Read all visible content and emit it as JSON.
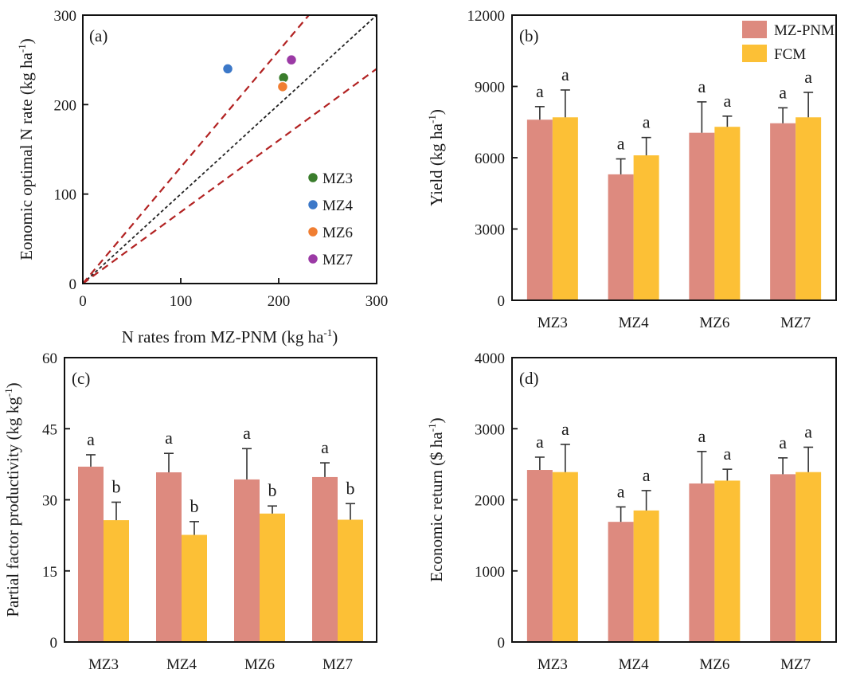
{
  "colors": {
    "mzpnm": "#dd8a7f",
    "fcm": "#fcc036",
    "red_line": "#b22222",
    "black_line": "#222222"
  },
  "chart_data": [
    {
      "id": "a",
      "type": "scatter",
      "panel_label": "(a)",
      "xlabel": "N rates from MZ-PNM (kg ha",
      "ylabel": "Eonomic optimal N rate (kg ha",
      "unit_sup": "-1",
      "unit_close": ")",
      "xlim": [
        0,
        300
      ],
      "ylim": [
        0,
        300
      ],
      "xticks": [
        0,
        100,
        200,
        300
      ],
      "yticks": [
        0,
        100,
        200,
        300
      ],
      "reference_lines": [
        {
          "name": "one-to-one",
          "slope": 1.0,
          "style": "black"
        },
        {
          "name": "upper-bound",
          "slope": 1.3,
          "style": "red"
        },
        {
          "name": "lower-bound",
          "slope": 0.8,
          "style": "red"
        }
      ],
      "points": [
        {
          "name": "MZ3",
          "x": 205,
          "y": 230,
          "color": "#3a7d2c"
        },
        {
          "name": "MZ4",
          "x": 148,
          "y": 240,
          "color": "#3c78c8"
        },
        {
          "name": "MZ6",
          "x": 204,
          "y": 220,
          "color": "#f07e32"
        },
        {
          "name": "MZ7",
          "x": 213,
          "y": 250,
          "color": "#9b3aa5"
        }
      ]
    },
    {
      "id": "b",
      "type": "bar",
      "panel_label": "(b)",
      "ylabel": "Yield (kg ha",
      "unit_sup": "-1",
      "unit_close": ")",
      "ylim": [
        0,
        12000
      ],
      "yticks": [
        0,
        3000,
        6000,
        9000,
        12000
      ],
      "categories": [
        "MZ3",
        "MZ4",
        "MZ6",
        "MZ7"
      ],
      "legend": [
        "MZ-PNM",
        "FCM"
      ],
      "series": [
        {
          "name": "MZ-PNM",
          "values": [
            7600,
            5300,
            7050,
            7450
          ],
          "errors": [
            550,
            650,
            1300,
            650
          ],
          "letters": [
            "a",
            "a",
            "a",
            "a"
          ]
        },
        {
          "name": "FCM",
          "values": [
            7700,
            6100,
            7300,
            7700
          ],
          "errors": [
            1150,
            750,
            450,
            1050
          ],
          "letters": [
            "a",
            "a",
            "a",
            "a"
          ]
        }
      ]
    },
    {
      "id": "c",
      "type": "bar",
      "panel_label": "(c)",
      "ylabel": "Partial factor productivity (kg kg",
      "unit_sup": "-1",
      "unit_close": ")",
      "ylim": [
        0,
        60
      ],
      "yticks": [
        0,
        15,
        30,
        45,
        60
      ],
      "categories": [
        "MZ3",
        "MZ4",
        "MZ6",
        "MZ7"
      ],
      "series": [
        {
          "name": "MZ-PNM",
          "values": [
            37.0,
            35.8,
            34.3,
            34.8
          ],
          "errors": [
            2.5,
            4.0,
            6.5,
            3.0
          ],
          "letters": [
            "a",
            "a",
            "a",
            "a"
          ]
        },
        {
          "name": "FCM",
          "values": [
            25.7,
            22.6,
            27.1,
            25.8
          ],
          "errors": [
            3.8,
            2.8,
            1.6,
            3.4
          ],
          "letters": [
            "b",
            "b",
            "b",
            "b"
          ]
        }
      ]
    },
    {
      "id": "d",
      "type": "bar",
      "panel_label": "(d)",
      "ylabel": "Economic return ($ ha",
      "unit_sup": "-1",
      "unit_close": ")",
      "ylim": [
        0,
        4000
      ],
      "yticks": [
        0,
        1000,
        2000,
        3000,
        4000
      ],
      "categories": [
        "MZ3",
        "MZ4",
        "MZ6",
        "MZ7"
      ],
      "series": [
        {
          "name": "MZ-PNM",
          "values": [
            2420,
            1690,
            2230,
            2360
          ],
          "errors": [
            180,
            210,
            450,
            230
          ],
          "letters": [
            "a",
            "a",
            "a",
            "a"
          ]
        },
        {
          "name": "FCM",
          "values": [
            2390,
            1850,
            2270,
            2390
          ],
          "errors": [
            390,
            280,
            160,
            350
          ],
          "letters": [
            "a",
            "a",
            "a",
            "a"
          ]
        }
      ]
    }
  ]
}
